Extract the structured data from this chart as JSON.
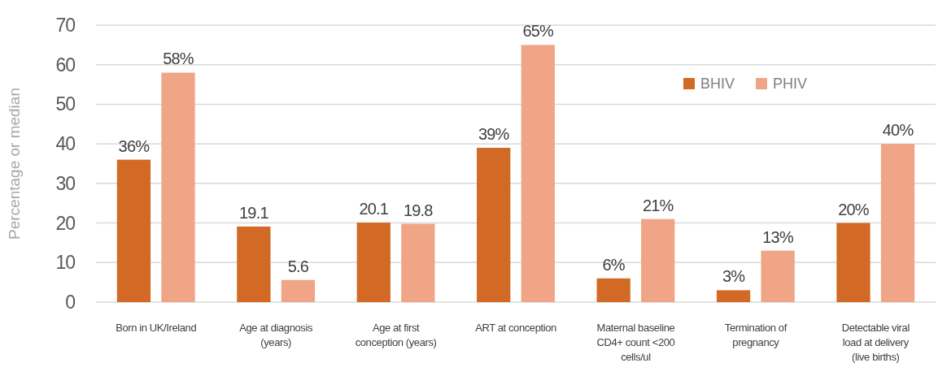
{
  "chart_data": {
    "type": "bar",
    "ylabel": "Percentage or median",
    "categories": [
      "Born in UK/Ireland",
      "Age at diagnosis (years)",
      "Age at first conception (years)",
      "ART at conception",
      "Maternal baseline CD4+ count <200 cells/ul",
      "Termination of pregnancy",
      "Detectable viral load at delivery (live births)"
    ],
    "series": [
      {
        "name": "BHIV",
        "color": "#d26a26",
        "values": [
          36,
          19.1,
          20.1,
          39,
          6,
          3,
          20
        ],
        "value_labels": [
          "36%",
          "19.1",
          "20.1",
          "39%",
          "6%",
          "3%",
          "20%"
        ]
      },
      {
        "name": "PHIV",
        "color": "#f0a586",
        "values": [
          58,
          5.6,
          19.8,
          65,
          21,
          13,
          40
        ],
        "value_labels": [
          "58%",
          "5.6",
          "19.8",
          "65%",
          "21%",
          "13%",
          "40%"
        ]
      }
    ],
    "ylim": [
      0,
      70
    ],
    "yticks": [
      0,
      10,
      20,
      30,
      40,
      50,
      60,
      70
    ],
    "grid": "y",
    "legend": "top right"
  }
}
